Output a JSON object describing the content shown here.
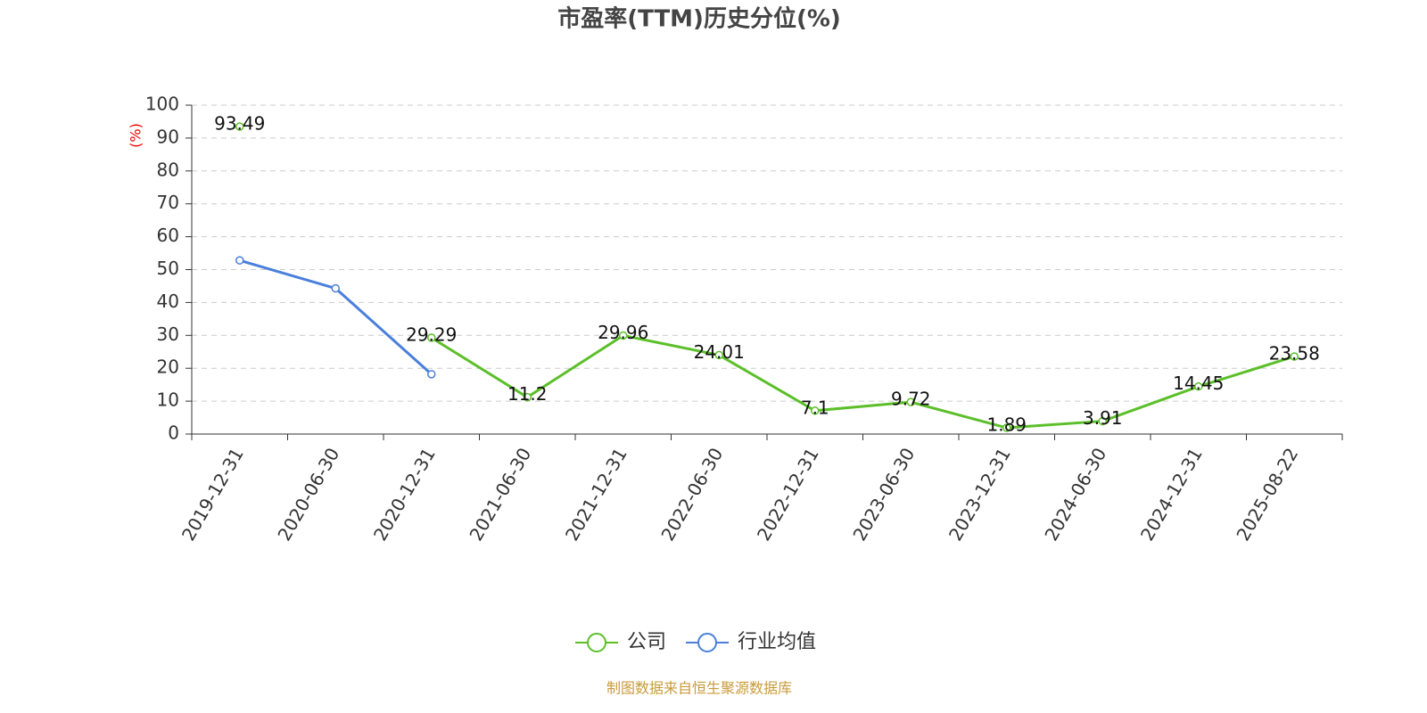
{
  "chart_data": {
    "type": "line",
    "title": "市盈率(TTM)历史分位(%)",
    "y_label": "(%)",
    "categories": [
      "2019-12-31",
      "2020-06-30",
      "2020-12-31",
      "2021-06-30",
      "2021-12-31",
      "2022-06-30",
      "2022-12-31",
      "2023-06-30",
      "2023-12-31",
      "2024-06-30",
      "2024-12-31",
      "2025-08-22"
    ],
    "series": [
      {
        "name": "公司",
        "color": "#5cbf2a",
        "values": [
          93.49,
          null,
          29.29,
          11.2,
          29.96,
          24.01,
          7.1,
          9.72,
          1.89,
          3.91,
          14.45,
          23.58
        ],
        "show_labels": true
      },
      {
        "name": "行业均值",
        "color": "#4a7fdc",
        "values": [
          52.8,
          44.3,
          18.2,
          null,
          null,
          null,
          null,
          null,
          null,
          null,
          null,
          null
        ],
        "show_labels": false
      }
    ],
    "ylim": [
      0,
      100
    ],
    "yticks": [
      0,
      10,
      20,
      30,
      40,
      50,
      60,
      70,
      80,
      90,
      100
    ],
    "grid": true,
    "legend": "bottom"
  },
  "footer": "制图数据来自恒生聚源数据库"
}
